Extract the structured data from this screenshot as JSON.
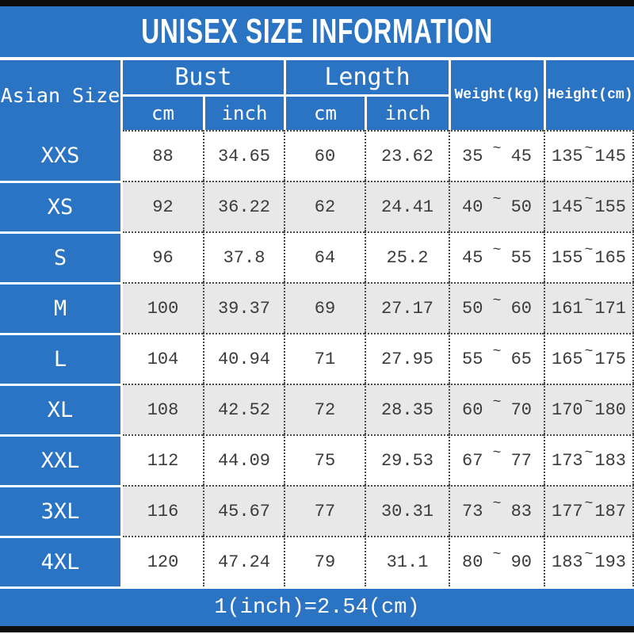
{
  "title": "UNISEX SIZE INFORMATION",
  "footer_note": "1(inch)=2.54(cm)",
  "colors": {
    "blue": "#2b74c4",
    "row_alt_gray": "#e8e8e8",
    "bar_black": "#0d0d0d",
    "text_dark": "#3b3b3b",
    "dotted_border": "#4a4a4a"
  },
  "table": {
    "header": {
      "size_col": "Asian Size",
      "bust": "Bust",
      "length": "Length",
      "cm": "cm",
      "inch": "inch",
      "weight": "Weight(kg)",
      "height": "Height(cm)"
    },
    "range_separator": "~",
    "rows": [
      {
        "size": "XXS",
        "bust_cm": "88",
        "bust_inch": "34.65",
        "length_cm": "60",
        "length_inch": "23.62",
        "weight_min": "35",
        "weight_max": "45",
        "height_min": "135",
        "height_max": "145"
      },
      {
        "size": "XS",
        "bust_cm": "92",
        "bust_inch": "36.22",
        "length_cm": "62",
        "length_inch": "24.41",
        "weight_min": "40",
        "weight_max": "50",
        "height_min": "145",
        "height_max": "155"
      },
      {
        "size": "S",
        "bust_cm": "96",
        "bust_inch": "37.8",
        "length_cm": "64",
        "length_inch": "25.2",
        "weight_min": "45",
        "weight_max": "55",
        "height_min": "155",
        "height_max": "165"
      },
      {
        "size": "M",
        "bust_cm": "100",
        "bust_inch": "39.37",
        "length_cm": "69",
        "length_inch": "27.17",
        "weight_min": "50",
        "weight_max": "60",
        "height_min": "161",
        "height_max": "171"
      },
      {
        "size": "L",
        "bust_cm": "104",
        "bust_inch": "40.94",
        "length_cm": "71",
        "length_inch": "27.95",
        "weight_min": "55",
        "weight_max": "65",
        "height_min": "165",
        "height_max": "175"
      },
      {
        "size": "XL",
        "bust_cm": "108",
        "bust_inch": "42.52",
        "length_cm": "72",
        "length_inch": "28.35",
        "weight_min": "60",
        "weight_max": "70",
        "height_min": "170",
        "height_max": "180"
      },
      {
        "size": "XXL",
        "bust_cm": "112",
        "bust_inch": "44.09",
        "length_cm": "75",
        "length_inch": "29.53",
        "weight_min": "67",
        "weight_max": "77",
        "height_min": "173",
        "height_max": "183"
      },
      {
        "size": "3XL",
        "bust_cm": "116",
        "bust_inch": "45.67",
        "length_cm": "77",
        "length_inch": "30.31",
        "weight_min": "73",
        "weight_max": "83",
        "height_min": "177",
        "height_max": "187"
      },
      {
        "size": "4XL",
        "bust_cm": "120",
        "bust_inch": "47.24",
        "length_cm": "79",
        "length_inch": "31.1",
        "weight_min": "80",
        "weight_max": "90",
        "height_min": "183",
        "height_max": "193"
      }
    ]
  }
}
